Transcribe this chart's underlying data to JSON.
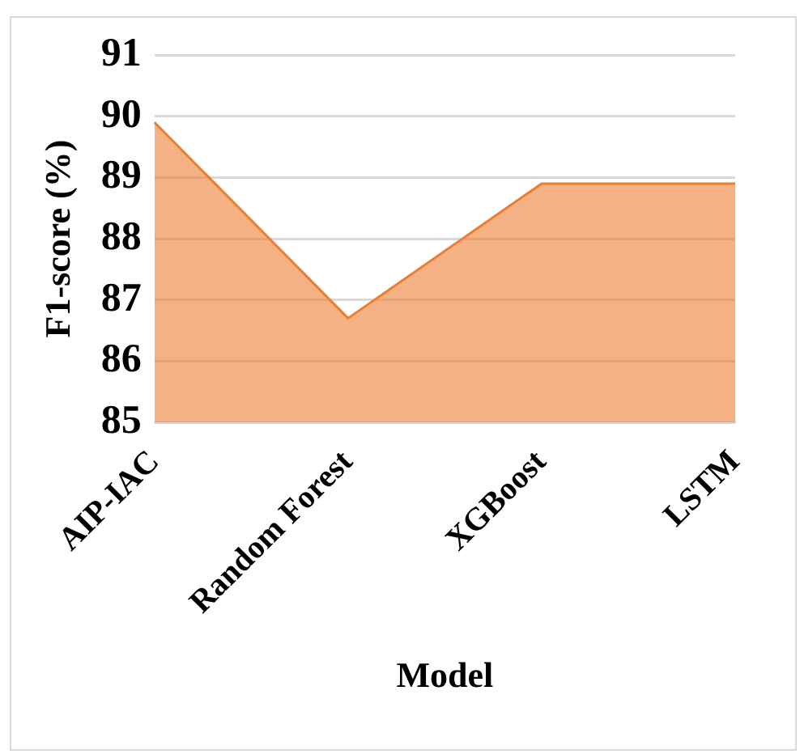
{
  "chart_data": {
    "type": "area",
    "xlabel": "Model",
    "ylabel": "F1-score (%)",
    "categories": [
      "AIP-IAC",
      "Random Forest",
      "XGBoost",
      "LSTM"
    ],
    "series": [
      {
        "color": "#ed7d31",
        "values": [
          89.9,
          86.7,
          88.9,
          88.9
        ]
      }
    ],
    "ylim": [
      85,
      91
    ],
    "yticks": [
      85,
      86,
      87,
      88,
      89,
      90,
      91
    ],
    "grid": "y",
    "legend": false
  }
}
